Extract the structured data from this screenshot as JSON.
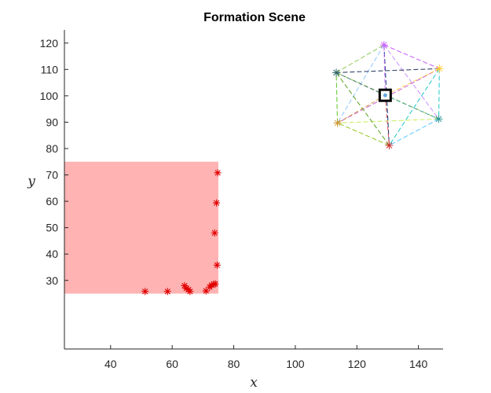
{
  "chart_data": {
    "type": "scatter",
    "title": "Formation Scene",
    "xlabel": "x",
    "ylabel": "y",
    "xlim": [
      25,
      148
    ],
    "ylim": [
      4,
      125
    ],
    "xticks": [
      40,
      60,
      80,
      100,
      120,
      140
    ],
    "yticks": [
      30,
      40,
      50,
      60,
      70,
      80,
      90,
      100,
      110,
      120
    ],
    "grid": false,
    "region": {
      "x": [
        25,
        75
      ],
      "y": [
        25,
        75
      ],
      "color": "#ffb3b3"
    },
    "targets": {
      "color": "#e00000",
      "marker": "asterisk",
      "points": [
        [
          51.2,
          25.8
        ],
        [
          58.5,
          25.8
        ],
        [
          64,
          28
        ],
        [
          64.6,
          27
        ],
        [
          65.3,
          26.5
        ],
        [
          65.8,
          25.8
        ],
        [
          71,
          26
        ],
        [
          72.2,
          27.5
        ],
        [
          72.8,
          28.2
        ],
        [
          73.5,
          28.5
        ],
        [
          74,
          28.7
        ],
        [
          74.6,
          35.8
        ],
        [
          73.8,
          48
        ],
        [
          74.4,
          59.4
        ],
        [
          74.8,
          70.8
        ]
      ]
    },
    "formation": {
      "center": [
        129.2,
        100.2
      ],
      "vertices": [
        [
          128.8,
          119.3
        ],
        [
          146.8,
          110.3
        ],
        [
          146.6,
          91.2
        ],
        [
          130.5,
          81.2
        ],
        [
          113.7,
          89.7
        ],
        [
          113.3,
          108.8
        ]
      ],
      "edges": [
        {
          "a": 0,
          "b": 1,
          "color": "#cc66ff"
        },
        {
          "a": 1,
          "b": 2,
          "color": "#33cccc"
        },
        {
          "a": 2,
          "b": 3,
          "color": "#66ccff"
        },
        {
          "a": 3,
          "b": 4,
          "color": "#99cc33"
        },
        {
          "a": 4,
          "b": 5,
          "color": "#66cc33"
        },
        {
          "a": 5,
          "b": 0,
          "color": "#99cc66"
        },
        {
          "a": 0,
          "b": 2,
          "color": "#cc99ff"
        },
        {
          "a": 0,
          "b": 4,
          "color": "#99ccff"
        },
        {
          "a": 0,
          "b": 3,
          "color": "#224488"
        },
        {
          "a": 1,
          "b": 3,
          "color": "#33cccc"
        },
        {
          "a": 1,
          "b": 5,
          "color": "#334466"
        },
        {
          "a": 1,
          "b": 4,
          "color": "#cc66cc"
        },
        {
          "a": 2,
          "b": 4,
          "color": "#ccee66"
        },
        {
          "a": 2,
          "b": 5,
          "color": "#99cc66"
        },
        {
          "a": 3,
          "b": 5,
          "color": "#66aa33"
        }
      ],
      "vertex_colors": [
        "#cc66ff",
        "#ffcc33",
        "#339999",
        "#cc3333",
        "#cc9933",
        "#336666"
      ],
      "center_marker": "square"
    }
  }
}
